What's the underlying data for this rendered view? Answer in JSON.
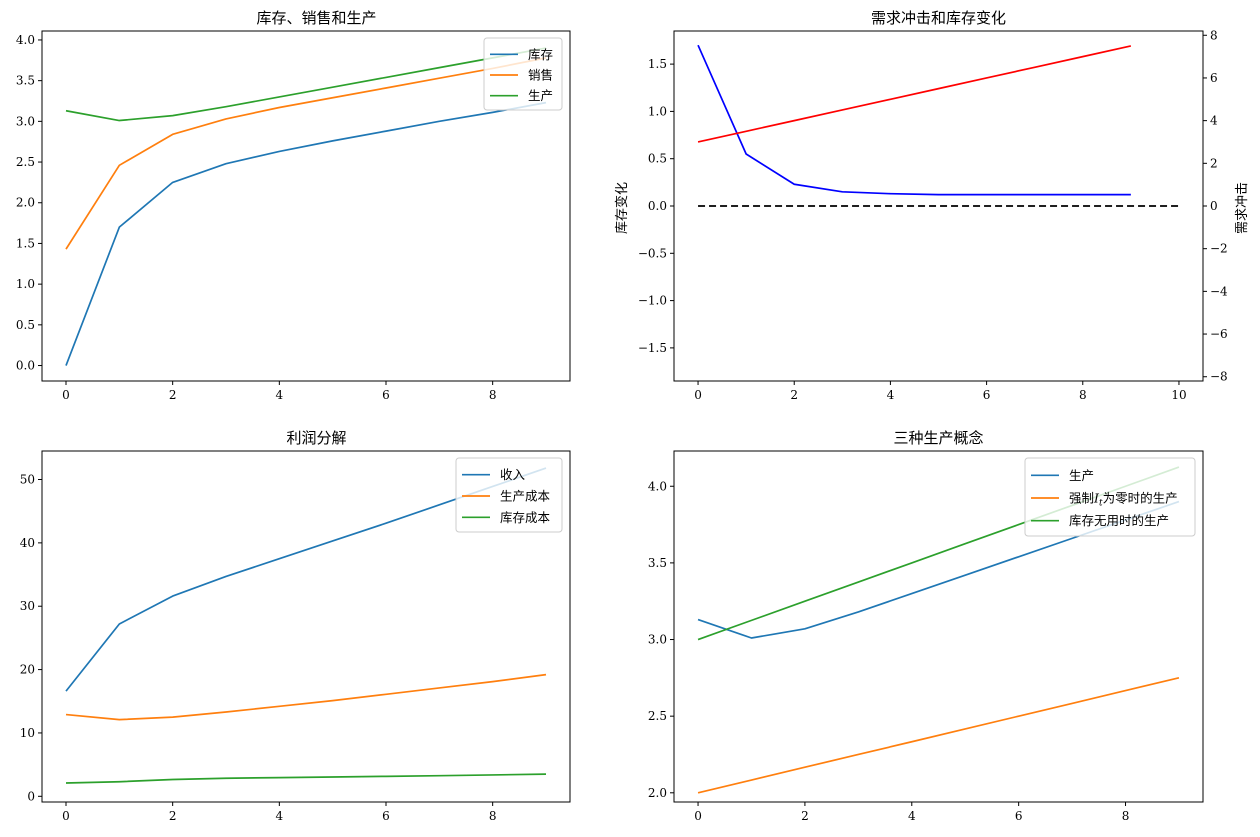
{
  "chart_data": [
    {
      "type": "line",
      "title": "库存、销售和生产",
      "x": [
        0,
        1,
        2,
        3,
        4,
        5,
        6,
        7,
        8,
        9
      ],
      "xlim": [
        -0.45,
        9.45
      ],
      "ylim": [
        -0.19,
        4.11
      ],
      "xticks": [
        0,
        2,
        4,
        6,
        8
      ],
      "yticks": [
        0.0,
        0.5,
        1.0,
        1.5,
        2.0,
        2.5,
        3.0,
        3.5,
        4.0
      ],
      "legend_loc": "top-right",
      "series": [
        {
          "name": "库存",
          "color": "#1f77b4",
          "values": [
            0.0,
            1.7,
            2.25,
            2.48,
            2.63,
            2.76,
            2.88,
            3.0,
            3.11,
            3.23
          ]
        },
        {
          "name": "销售",
          "color": "#ff7f0e",
          "values": [
            1.43,
            2.46,
            2.84,
            3.03,
            3.17,
            3.29,
            3.41,
            3.53,
            3.65,
            3.78
          ]
        },
        {
          "name": "生产",
          "color": "#2ca02c",
          "values": [
            3.13,
            3.01,
            3.07,
            3.18,
            3.3,
            3.42,
            3.54,
            3.66,
            3.78,
            3.9
          ]
        }
      ]
    },
    {
      "type": "line",
      "title": "需求冲击和库存变化",
      "x": [
        0,
        1,
        2,
        3,
        4,
        5,
        6,
        7,
        8,
        9
      ],
      "xlim": [
        -0.5,
        10.5
      ],
      "ylim": [
        -1.85,
        1.85
      ],
      "y2lim": [
        -8.2,
        8.2
      ],
      "xticks": [
        0,
        2,
        4,
        6,
        8,
        10
      ],
      "yticks": [
        -1.5,
        -1.0,
        -0.5,
        0.0,
        0.5,
        1.0,
        1.5
      ],
      "y2ticks": [
        -8,
        -6,
        -4,
        -2,
        0,
        2,
        4,
        6,
        8
      ],
      "ylabel": "库存变化",
      "ylabel_color": "#0000ff",
      "y2label": "需求冲击",
      "y2label_color": "#ff0000",
      "series": [
        {
          "name": "库存变化",
          "axis": "left",
          "color": "#0000ff",
          "values": [
            1.7,
            0.55,
            0.23,
            0.15,
            0.13,
            0.12,
            0.12,
            0.12,
            0.12,
            0.12
          ]
        },
        {
          "name": "需求冲击",
          "axis": "right",
          "color": "#ff0000",
          "values": [
            3.0,
            3.5,
            4.0,
            4.5,
            5.0,
            5.5,
            6.0,
            6.5,
            7.0,
            7.5
          ]
        }
      ],
      "reference_line": {
        "y": 0,
        "x_from": 0,
        "x_to": 10,
        "color": "#000000",
        "style": "dashed"
      }
    },
    {
      "type": "line",
      "title": "利润分解",
      "x": [
        0,
        1,
        2,
        3,
        4,
        5,
        6,
        7,
        8,
        9
      ],
      "xlim": [
        -0.45,
        9.45
      ],
      "ylim": [
        -0.9,
        54.5
      ],
      "xticks": [
        0,
        2,
        4,
        6,
        8
      ],
      "yticks": [
        0,
        10,
        20,
        30,
        40,
        50
      ],
      "legend_loc": "top-right",
      "series": [
        {
          "name": "收入",
          "color": "#1f77b4",
          "values": [
            16.6,
            27.2,
            31.6,
            34.7,
            37.5,
            40.3,
            43.1,
            46.0,
            48.9,
            51.8
          ]
        },
        {
          "name": "生产成本",
          "color": "#ff7f0e",
          "values": [
            12.9,
            12.1,
            12.5,
            13.3,
            14.2,
            15.1,
            16.1,
            17.1,
            18.1,
            19.2
          ]
        },
        {
          "name": "库存成本",
          "color": "#2ca02c",
          "values": [
            2.1,
            2.3,
            2.65,
            2.85,
            2.95,
            3.05,
            3.15,
            3.25,
            3.37,
            3.5
          ]
        }
      ]
    },
    {
      "type": "line",
      "title": "三种生产概念",
      "x": [
        0,
        1,
        2,
        3,
        4,
        5,
        6,
        7,
        8,
        9
      ],
      "xlim": [
        -0.45,
        9.45
      ],
      "ylim": [
        1.94,
        4.23
      ],
      "xticks": [
        0,
        2,
        4,
        6,
        8
      ],
      "yticks": [
        2.0,
        2.5,
        3.0,
        3.5,
        4.0
      ],
      "legend_loc": "top-right",
      "series": [
        {
          "name": "生产",
          "color": "#1f77b4",
          "values": [
            3.13,
            3.01,
            3.07,
            3.18,
            3.3,
            3.42,
            3.54,
            3.66,
            3.78,
            3.9
          ]
        },
        {
          "name": "强制",
          "name_math": "I",
          "name_sub": "t",
          "name_suffix": "为零时的生产",
          "color": "#ff7f0e",
          "values": [
            2.0,
            2.083,
            2.167,
            2.25,
            2.333,
            2.417,
            2.5,
            2.583,
            2.667,
            2.75
          ]
        },
        {
          "name": "库存无用时的生产",
          "color": "#2ca02c",
          "values": [
            3.0,
            3.125,
            3.25,
            3.375,
            3.5,
            3.625,
            3.75,
            3.875,
            4.0,
            4.125
          ]
        }
      ]
    }
  ]
}
